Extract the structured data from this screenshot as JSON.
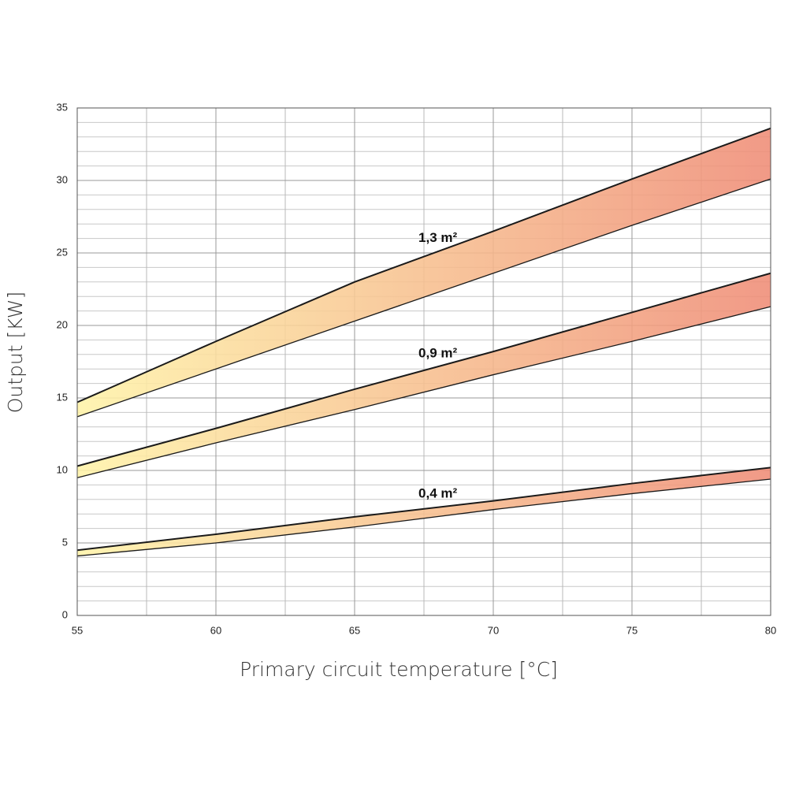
{
  "chart_data": {
    "type": "band",
    "x_label": "Primary circuit temperature [°C]",
    "y_label": "Output [KW]",
    "x": [
      55,
      60,
      65,
      70,
      75,
      80
    ],
    "series": [
      {
        "name": "1,3 m²",
        "high": [
          14.7,
          18.9,
          23.0,
          26.5,
          30.1,
          33.6
        ],
        "low": [
          13.7,
          17.0,
          20.3,
          23.6,
          26.9,
          30.1
        ]
      },
      {
        "name": "0,9 m²",
        "high": [
          10.3,
          12.9,
          15.6,
          18.2,
          20.9,
          23.6
        ],
        "low": [
          9.5,
          11.9,
          14.2,
          16.6,
          18.9,
          21.3
        ]
      },
      {
        "name": "0,4 m²",
        "high": [
          4.5,
          5.6,
          6.8,
          7.9,
          9.1,
          10.2
        ],
        "low": [
          4.1,
          5.0,
          6.1,
          7.3,
          8.4,
          9.4
        ]
      }
    ],
    "gradient": [
      "#fff3a8",
      "#ef8c76"
    ],
    "line_color": "#1a1a1a",
    "xlim": [
      55,
      80
    ],
    "ylim": [
      0,
      35
    ],
    "xticks": [
      55,
      60,
      65,
      70,
      75,
      80
    ],
    "yticks": [
      0,
      5,
      10,
      15,
      20,
      25,
      30,
      35
    ],
    "grid": true,
    "minor_grid": {
      "x": 2,
      "y": 5
    }
  }
}
